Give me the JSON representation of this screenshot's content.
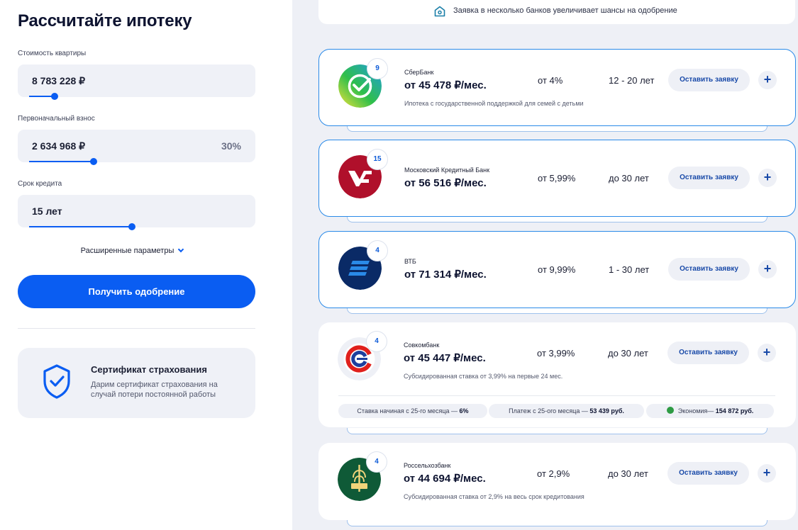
{
  "calculator": {
    "title": "Рассчитайте ипотеку",
    "price": {
      "label": "Стоимость квартиры",
      "value": "8 783 228 ₽",
      "slider_fraction": 0.12
    },
    "down_payment": {
      "label": "Первоначальный взнос",
      "value": "2 634 968 ₽",
      "percent": "30%",
      "slider_fraction": 0.3
    },
    "term": {
      "label": "Срок кредита",
      "value": "15 лет",
      "slider_fraction": 0.48
    },
    "advanced_label": "Расширенные параметры",
    "submit_label": "Получить одобрение"
  },
  "insurance": {
    "title": "Сертификат страхования",
    "subtitle": "Дарим сертификат страхования на случай потери постоянной работы"
  },
  "banner": {
    "text": "Заявка в несколько банков увеличивает шансы на одобрение"
  },
  "apply_label": "Оставить заявку",
  "plus_label": "+",
  "colors": {
    "accent": "#0a5df2",
    "selected_border": "#2a8ae8",
    "economy_green": "#2e9b44"
  },
  "offers": [
    {
      "bank": "СберБанк",
      "payment": "от 45 478 ₽/мес.",
      "rate": "от 4%",
      "term": "12 - 20 лет",
      "badge": "9",
      "note": "Ипотека с государственной поддержкой для семей с детьми",
      "selected": true,
      "logo": "sberbank-logo"
    },
    {
      "bank": "Московский Кредитный Банк",
      "payment": "от 56 516 ₽/мес.",
      "rate": "от 5,99%",
      "term": "до 30 лет",
      "badge": "15",
      "note": "",
      "selected": true,
      "logo": "mkb-logo"
    },
    {
      "bank": "ВТБ",
      "payment": "от 71 314 ₽/мес.",
      "rate": "от 9,99%",
      "term": "1 - 30 лет",
      "badge": "4",
      "note": "",
      "selected": true,
      "logo": "vtb-logo"
    },
    {
      "bank": "Совкомбанк",
      "payment": "от 45 447 ₽/мес.",
      "rate": "от 3,99%",
      "term": "до 30 лет",
      "badge": "4",
      "note": "Субсидированная ставка от 3,99% на первые 24 мес.",
      "selected": false,
      "logo": "sovcombank-logo",
      "details": [
        {
          "text": "Ставка начиная с 25-го месяца — ",
          "value": "6%"
        },
        {
          "text": "Платеж с 25-ого месяца — ",
          "value": "53 439 руб."
        },
        {
          "text": "Экономия— ",
          "value": "154 872 руб."
        }
      ]
    },
    {
      "bank": "Россельхозбанк",
      "payment": "от 44 694 ₽/мес.",
      "rate": "от 2,9%",
      "term": "до 30 лет",
      "badge": "4",
      "note": "Субсидированная ставка от 2,9% на весь срок кредитования",
      "selected": false,
      "logo": "rshb-logo"
    }
  ]
}
